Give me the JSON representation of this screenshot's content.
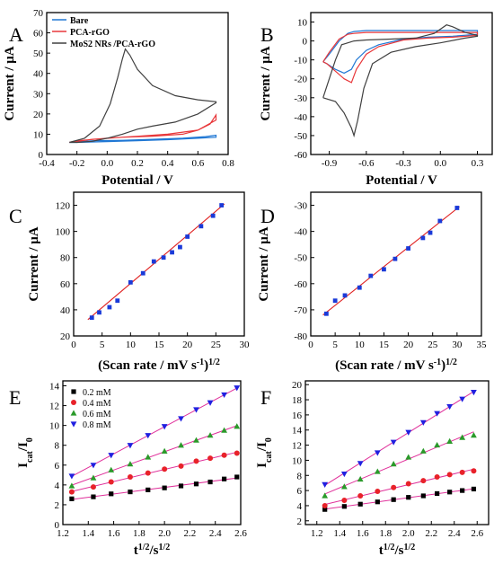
{
  "chart_data": [
    {
      "panel": "A",
      "type": "line",
      "xlabel": "Potential / V",
      "ylabel": "Current / μA",
      "xlim": [
        -0.4,
        0.8
      ],
      "ylim": [
        0,
        70
      ],
      "xticks": [
        "-0.4",
        "-0.2",
        "0.0",
        "0.2",
        "0.4",
        "0.6",
        "0.8"
      ],
      "yticks": [
        "0",
        "10",
        "20",
        "30",
        "40",
        "50",
        "60",
        "70"
      ],
      "legend": "top-left",
      "series": [
        {
          "name": "Bare",
          "color": "#1f77d4",
          "x": [
            -0.25,
            -0.1,
            0.1,
            0.3,
            0.5,
            0.65,
            0.72,
            0.72,
            0.6,
            0.4,
            0.2,
            0.0,
            -0.2,
            -0.25
          ],
          "y": [
            6.0,
            6.8,
            7.0,
            7.5,
            8.0,
            8.8,
            9.5,
            8.5,
            8.0,
            7.3,
            6.8,
            6.4,
            6.0,
            6.0
          ]
        },
        {
          "name": "PCA-rGO",
          "color": "#e8373a",
          "x": [
            -0.25,
            -0.1,
            0.1,
            0.3,
            0.5,
            0.6,
            0.68,
            0.72,
            0.72,
            0.6,
            0.4,
            0.2,
            0.0,
            -0.2,
            -0.25
          ],
          "y": [
            6.0,
            7.5,
            8.5,
            9.0,
            10.0,
            12.0,
            15.0,
            19.5,
            17.0,
            12.0,
            10.0,
            9.0,
            8.0,
            6.8,
            6.0
          ]
        },
        {
          "name": "MoS2 NRs /PCA-rGO",
          "color": "#404040",
          "x": [
            -0.25,
            -0.15,
            -0.05,
            0.02,
            0.07,
            0.1,
            0.12,
            0.15,
            0.2,
            0.3,
            0.45,
            0.6,
            0.72,
            0.72,
            0.6,
            0.45,
            0.3,
            0.2,
            0.1,
            0.0,
            -0.1,
            -0.2,
            -0.25
          ],
          "y": [
            6.0,
            8.0,
            14.0,
            25.0,
            38.0,
            47.0,
            52.0,
            49.0,
            42.0,
            34.0,
            29.0,
            27.0,
            26.0,
            25.5,
            20.0,
            16.0,
            14.0,
            12.5,
            10.0,
            8.0,
            6.5,
            6.0,
            6.0
          ]
        }
      ]
    },
    {
      "panel": "B",
      "type": "line",
      "xlabel": "Potential / V",
      "ylabel": "Current / μA",
      "xlim": [
        -1.05,
        0.42
      ],
      "ylim": [
        -60,
        15
      ],
      "xticks": [
        "-0.9",
        "-0.6",
        "-0.3",
        "0.0",
        "0.3"
      ],
      "xtick_values": [
        -0.9,
        -0.6,
        -0.3,
        0.0,
        0.3
      ],
      "yticks": [
        "-60",
        "-50",
        "-40",
        "-30",
        "-20",
        "-10",
        "0",
        "10"
      ],
      "series": [
        {
          "name": "Bare",
          "color": "#1f77d4",
          "x": [
            -0.95,
            -0.9,
            -0.82,
            -0.75,
            -0.7,
            -0.6,
            -0.4,
            -0.2,
            0.0,
            0.2,
            0.3,
            0.3,
            0.1,
            -0.1,
            -0.3,
            -0.5,
            -0.6,
            -0.68,
            -0.72,
            -0.78,
            -0.85,
            -0.92,
            -0.95
          ],
          "y": [
            -11,
            -7,
            0,
            4,
            5,
            5.5,
            5.5,
            5.5,
            5.5,
            5.5,
            5.5,
            3.5,
            2.5,
            2.0,
            1.0,
            -2.0,
            -5.0,
            -10.0,
            -15.0,
            -17.0,
            -15.0,
            -12.0,
            -11.0
          ]
        },
        {
          "name": "PCA-rGO",
          "color": "#e8373a",
          "x": [
            -0.95,
            -0.9,
            -0.82,
            -0.75,
            -0.7,
            -0.6,
            -0.4,
            -0.2,
            0.0,
            0.2,
            0.3,
            0.3,
            0.1,
            -0.1,
            -0.3,
            -0.5,
            -0.6,
            -0.68,
            -0.72,
            -0.78,
            -0.85,
            -0.92,
            -0.95
          ],
          "y": [
            -11,
            -6,
            1,
            3.5,
            4,
            4.5,
            4.5,
            4.5,
            4.5,
            4.5,
            4.5,
            3.0,
            2.0,
            1.5,
            0.5,
            -3.0,
            -7.0,
            -15.0,
            -22.0,
            -20.0,
            -16.0,
            -12.0,
            -11.0
          ]
        },
        {
          "name": "MoS2 NRs /PCA-rGO",
          "color": "#404040",
          "x": [
            -0.95,
            -0.9,
            -0.85,
            -0.8,
            -0.7,
            -0.6,
            -0.4,
            -0.2,
            -0.05,
            0.05,
            0.1,
            0.2,
            0.3,
            0.3,
            0.2,
            0.0,
            -0.2,
            -0.4,
            -0.55,
            -0.62,
            -0.67,
            -0.7,
            -0.72,
            -0.78,
            -0.85,
            -0.95
          ],
          "y": [
            -30,
            -20,
            -10,
            -2,
            0,
            0.5,
            1.0,
            1.5,
            4.0,
            8.5,
            7.5,
            4.5,
            3.0,
            2.5,
            1.5,
            -1.0,
            -3.0,
            -6.0,
            -12.0,
            -25.0,
            -42.0,
            -50.0,
            -46.0,
            -38.0,
            -32.0,
            -30.0
          ]
        }
      ]
    },
    {
      "panel": "C",
      "type": "scatter",
      "xlabel": "(Scan rate / mV s",
      "xlabel_sup": "-1",
      "xlabel_end": ")",
      "xlabel_sup2": "1/2",
      "ylabel": "Current / μA",
      "xlim": [
        0,
        30
      ],
      "ylim": [
        20,
        130
      ],
      "xticks": [
        "0",
        "5",
        "10",
        "15",
        "20",
        "25",
        "30"
      ],
      "yticks": [
        "20",
        "40",
        "60",
        "80",
        "100",
        "120"
      ],
      "fit_line": {
        "x": [
          2.5,
          26.5
        ],
        "y": [
          32.5,
          121
        ],
        "color": "#e02020"
      },
      "x": [
        3.2,
        4.5,
        6.3,
        7.7,
        10.0,
        12.2,
        14.1,
        15.8,
        17.3,
        18.7,
        20.0,
        22.4,
        24.5,
        26.0
      ],
      "y": [
        34,
        38,
        42,
        47,
        61,
        68,
        77,
        80,
        84,
        88,
        96,
        104,
        112,
        120
      ],
      "marker_color": "#1a3ad8"
    },
    {
      "panel": "D",
      "type": "scatter",
      "xlabel": "(Scan rate / mV s",
      "xlabel_sup": "-1",
      "xlabel_end": ")",
      "xlabel_sup2": "1/2",
      "ylabel": "Current / μA",
      "xlim": [
        0,
        35
      ],
      "ylim": [
        -80,
        -25
      ],
      "xticks": [
        "0",
        "5",
        "10",
        "15",
        "20",
        "25",
        "30",
        "35"
      ],
      "yticks": [
        "-80",
        "-70",
        "-60",
        "-50",
        "-40",
        "-30"
      ],
      "fit_line": {
        "x": [
          2.5,
          30.5
        ],
        "y": [
          -72,
          -30.5
        ],
        "color": "#e02020"
      },
      "x": [
        3.2,
        5.0,
        7.0,
        10.0,
        12.3,
        15.0,
        17.3,
        20.0,
        23.0,
        24.5,
        26.5,
        30.0
      ],
      "y": [
        -71.5,
        -66.5,
        -64.5,
        -61.5,
        -57,
        -54.5,
        -50.5,
        -46.5,
        -42.5,
        -40.5,
        -36,
        -31
      ],
      "marker_color": "#1a3ad8"
    },
    {
      "panel": "E",
      "type": "scatter",
      "xlabel": "t",
      "xlabel_sup": "1/2",
      "xlabel_mid": "/s",
      "xlabel_sup2": "1/2",
      "ylabel": "I",
      "ylabel_sub": "cat",
      "ylabel_mid": "/I",
      "ylabel_sub2": "0",
      "xlim": [
        1.2,
        2.6
      ],
      "ylim": [
        0,
        14.5
      ],
      "xticks": [
        "1.2",
        "1.4",
        "1.6",
        "1.8",
        "2.0",
        "2.2",
        "2.4",
        "2.6"
      ],
      "yticks": [
        "0",
        "2",
        "4",
        "6",
        "8",
        "10",
        "12",
        "14"
      ],
      "legend": "top-left",
      "x": [
        1.27,
        1.44,
        1.58,
        1.73,
        1.87,
        2.0,
        2.13,
        2.25,
        2.36,
        2.47,
        2.57
      ],
      "series": [
        {
          "name": "0.2 mM",
          "marker": "square",
          "color": "#000000",
          "y": [
            2.6,
            2.8,
            3.1,
            3.3,
            3.5,
            3.7,
            3.9,
            4.1,
            4.3,
            4.6,
            4.8
          ]
        },
        {
          "name": "0.4 mM",
          "marker": "circle",
          "color": "#e8222a",
          "y": [
            3.3,
            3.8,
            4.3,
            4.8,
            5.2,
            5.6,
            5.9,
            6.4,
            6.7,
            7.0,
            7.2
          ]
        },
        {
          "name": "0.6 mM",
          "marker": "triangle-up",
          "color": "#2a9a2a",
          "y": [
            3.9,
            4.7,
            5.5,
            6.1,
            6.8,
            7.4,
            8.0,
            8.5,
            9.0,
            9.5,
            9.9
          ]
        },
        {
          "name": "0.8 mM",
          "marker": "triangle-down",
          "color": "#2020e0",
          "y": [
            4.9,
            6.0,
            7.0,
            8.0,
            9.0,
            9.9,
            10.7,
            11.6,
            12.3,
            13.1,
            13.8
          ]
        }
      ],
      "fit_color": "#e0309a"
    },
    {
      "panel": "F",
      "type": "scatter",
      "xlabel": "t",
      "xlabel_sup": "1/2",
      "xlabel_mid": "/s",
      "xlabel_sup2": "1/2",
      "ylabel": "I",
      "ylabel_sub": "cat",
      "ylabel_mid": "/I",
      "ylabel_sub2": "0",
      "xlim": [
        1.1,
        2.7
      ],
      "ylim": [
        1.5,
        20.5
      ],
      "xticks": [
        "1.2",
        "1.4",
        "1.6",
        "1.8",
        "2.0",
        "2.2",
        "2.4",
        "2.6"
      ],
      "xtick_values": [
        1.2,
        1.4,
        1.6,
        1.8,
        2.0,
        2.2,
        2.4,
        2.6
      ],
      "yticks": [
        "2",
        "4",
        "6",
        "8",
        "10",
        "12",
        "14",
        "16",
        "18",
        "20"
      ],
      "x": [
        1.27,
        1.44,
        1.58,
        1.73,
        1.87,
        2.0,
        2.13,
        2.25,
        2.36,
        2.47,
        2.57
      ],
      "series": [
        {
          "name": "0.2 mM",
          "marker": "square",
          "color": "#000000",
          "y": [
            3.5,
            3.9,
            4.2,
            4.5,
            4.8,
            5.1,
            5.3,
            5.6,
            5.8,
            6.0,
            6.2
          ]
        },
        {
          "name": "0.4 mM",
          "marker": "circle",
          "color": "#e8222a",
          "y": [
            4.0,
            4.7,
            5.3,
            5.9,
            6.4,
            6.9,
            7.3,
            7.8,
            8.1,
            8.4,
            8.6
          ]
        },
        {
          "name": "0.6 mM",
          "marker": "triangle-up",
          "color": "#2a9a2a",
          "y": [
            5.3,
            6.5,
            7.5,
            8.5,
            9.5,
            10.4,
            11.2,
            12.0,
            12.5,
            13.0,
            13.3
          ]
        },
        {
          "name": "0.8 mM",
          "marker": "triangle-down",
          "color": "#2020e0",
          "y": [
            6.8,
            8.2,
            9.6,
            11.0,
            12.4,
            13.7,
            15.0,
            16.2,
            17.1,
            18.1,
            19.0
          ]
        }
      ],
      "fit_color": "#e0309a"
    }
  ]
}
